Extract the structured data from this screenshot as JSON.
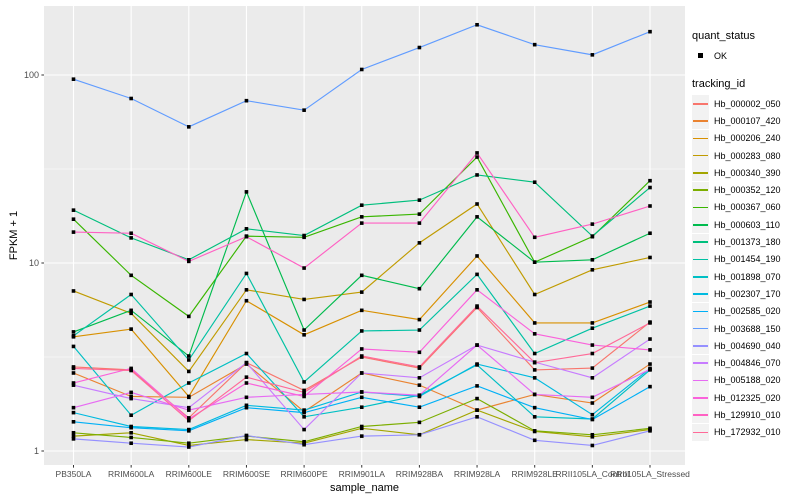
{
  "figure": {
    "background": "#FFFFFF",
    "panel_background": "#EBEBEB",
    "grid_color": "#FFFFFF",
    "tick_color": "#333333",
    "tick_label_color": "#4D4D4D",
    "point_color": "#000000"
  },
  "legend": {
    "quant_status_title": "quant_status",
    "quant_status_items": [
      {
        "label": "OK",
        "marker": "black-square-point"
      }
    ],
    "tracking_title": "tracking_id",
    "key_background": "#F2F2F2",
    "position": "right"
  },
  "chart_data": {
    "type": "line",
    "title": "",
    "xlabel": "sample_name",
    "ylabel": "FPKM + 1",
    "y_scale": "log10",
    "y_ticks": [
      1,
      10,
      100
    ],
    "y_minor_ticks": [
      3.162,
      31.62
    ],
    "ylim": [
      0.84,
      233
    ],
    "grid": true,
    "legend_position": "right",
    "point_marker": "black-square",
    "categories": [
      "PB350LA",
      "RRIM600LA",
      "RRIM600LE",
      "RRIM600SE",
      "RRIM600PE",
      "RRIM901LA",
      "RRIM928BA",
      "RRIM928LA",
      "RRIM928LE",
      "RRII105LA_Control",
      "RRII105LA_Stressed"
    ],
    "series": [
      {
        "name": "Hb_000002_050",
        "color": "#F8766D",
        "values": [
          2.8,
          2.7,
          1.5,
          2.95,
          2.1,
          3.16,
          2.76,
          5.8,
          2.7,
          2.76,
          4.85
        ]
      },
      {
        "name": "Hb_000107_420",
        "color": "#EA8331",
        "values": [
          2.6,
          1.95,
          1.93,
          2.9,
          1.62,
          2.6,
          2.24,
          1.65,
          2.0,
          1.8,
          2.9
        ]
      },
      {
        "name": "Hb_000206_240",
        "color": "#D89000",
        "values": [
          4.05,
          4.45,
          1.95,
          6.3,
          4.15,
          5.6,
          5.0,
          10.9,
          4.8,
          4.8,
          6.2
        ]
      },
      {
        "name": "Hb_000283_080",
        "color": "#C09B00",
        "values": [
          7.1,
          5.4,
          2.65,
          7.2,
          6.4,
          7.0,
          12.8,
          20.6,
          6.8,
          9.2,
          10.7
        ]
      },
      {
        "name": "Hb_000340_390",
        "color": "#A3A500",
        "values": [
          1.2,
          1.25,
          1.07,
          1.15,
          1.1,
          1.32,
          1.22,
          1.65,
          1.27,
          1.19,
          1.3
        ]
      },
      {
        "name": "Hb_000352_120",
        "color": "#7CAE00",
        "values": [
          1.25,
          1.18,
          1.1,
          1.2,
          1.12,
          1.35,
          1.42,
          1.9,
          1.28,
          1.22,
          1.32
        ]
      },
      {
        "name": "Hb_000367_060",
        "color": "#39B600",
        "values": [
          17.1,
          8.6,
          5.2,
          13.9,
          13.7,
          17.6,
          18.2,
          36.6,
          10.1,
          13.8,
          27.4
        ]
      },
      {
        "name": "Hb_000603_110",
        "color": "#00BB4E",
        "values": [
          4.3,
          5.6,
          3.2,
          23.9,
          4.4,
          8.6,
          7.3,
          17.6,
          10.1,
          10.4,
          14.4
        ]
      },
      {
        "name": "Hb_001373_180",
        "color": "#00BF7D",
        "values": [
          19.1,
          13.6,
          10.4,
          15.2,
          14.0,
          20.3,
          21.6,
          29.4,
          26.9,
          13.9,
          25.2
        ]
      },
      {
        "name": "Hb_001454_190",
        "color": "#00C1A3",
        "values": [
          4.1,
          6.8,
          3.05,
          8.8,
          2.33,
          4.35,
          4.4,
          8.7,
          3.3,
          4.5,
          5.9
        ]
      },
      {
        "name": "Hb_001898_070",
        "color": "#00BFC4",
        "values": [
          3.6,
          1.55,
          2.3,
          3.3,
          1.52,
          1.71,
          1.98,
          2.87,
          1.52,
          1.48,
          2.7
        ]
      },
      {
        "name": "Hb_002307_170",
        "color": "#00BAE0",
        "values": [
          1.6,
          1.35,
          1.3,
          1.75,
          1.65,
          2.06,
          1.95,
          2.9,
          2.45,
          1.56,
          2.75
        ]
      },
      {
        "name": "Hb_002585_020",
        "color": "#00B0F6",
        "values": [
          1.43,
          1.33,
          1.28,
          1.7,
          1.6,
          1.93,
          1.71,
          2.22,
          1.7,
          1.47,
          2.2
        ]
      },
      {
        "name": "Hb_003688_150",
        "color": "#619CFF",
        "values": [
          95,
          75,
          53,
          73,
          65,
          107,
          140,
          185,
          145,
          128,
          170
        ]
      },
      {
        "name": "Hb_004690_040",
        "color": "#9590FF",
        "values": [
          1.16,
          1.1,
          1.05,
          1.21,
          1.08,
          1.2,
          1.22,
          1.52,
          1.14,
          1.07,
          1.28
        ]
      },
      {
        "name": "Hb_004846_070",
        "color": "#C77CFF",
        "values": [
          2.24,
          1.9,
          1.7,
          2.95,
          1.3,
          2.6,
          2.45,
          3.66,
          2.97,
          2.45,
          3.94
        ]
      },
      {
        "name": "Hb_005188_020",
        "color": "#E76BF3",
        "values": [
          1.7,
          2.05,
          1.65,
          1.93,
          2.0,
          2.06,
          1.98,
          3.66,
          2.0,
          1.93,
          2.72
        ]
      },
      {
        "name": "Hb_012325_020",
        "color": "#FA62DB",
        "values": [
          2.3,
          2.75,
          1.48,
          2.3,
          1.95,
          3.49,
          3.35,
          7.2,
          4.2,
          3.66,
          3.45
        ]
      },
      {
        "name": "Hb_129910_010",
        "color": "#FF61C3",
        "values": [
          14.6,
          14.4,
          10.2,
          13.8,
          9.4,
          16.3,
          16.3,
          38.5,
          13.7,
          16.1,
          20.1
        ]
      },
      {
        "name": "Hb_172932_010",
        "color": "#FF6A98",
        "values": [
          2.75,
          2.68,
          1.45,
          2.47,
          2.05,
          3.2,
          2.8,
          5.9,
          2.95,
          3.3,
          4.8
        ]
      }
    ]
  }
}
